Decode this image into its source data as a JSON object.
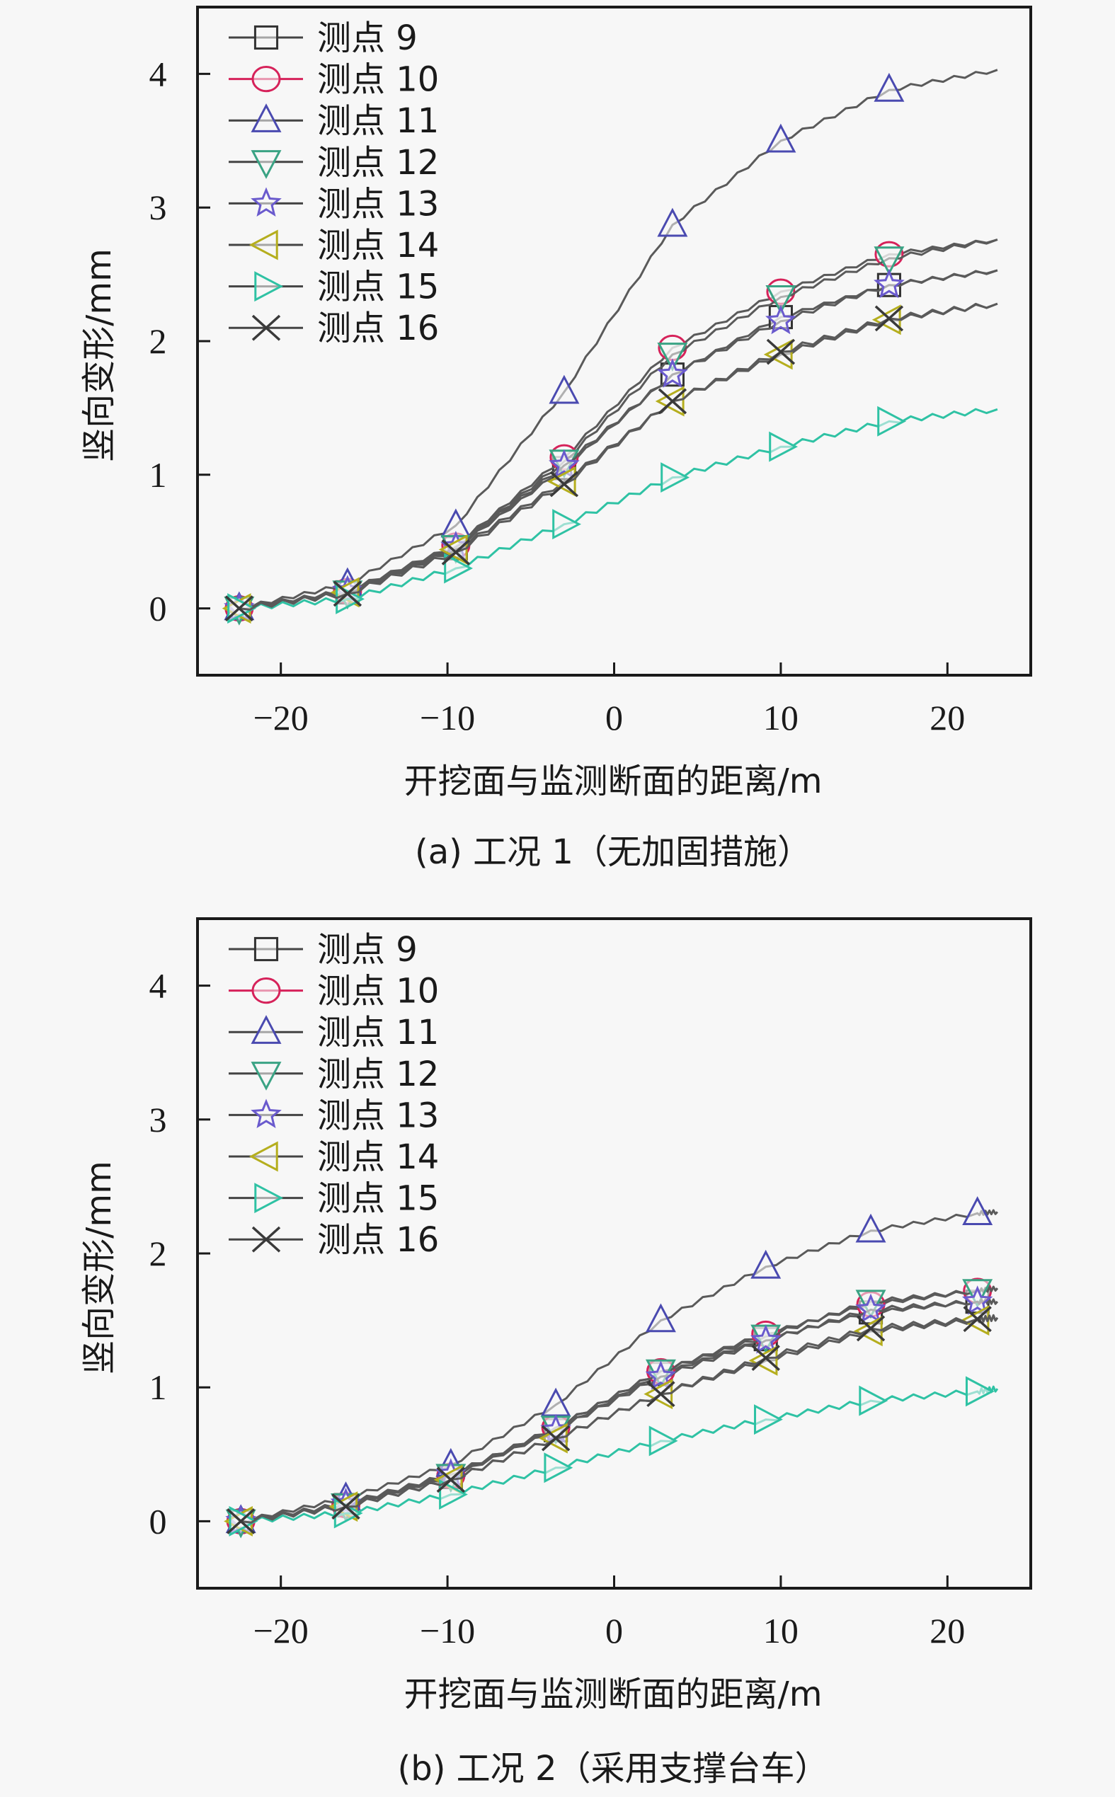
{
  "chart_data": [
    {
      "type": "line",
      "panel": "a",
      "caption": "(a) 工况 1（无加固措施）",
      "xlabel": "开挖面与监测断面的距离/m",
      "ylabel": "竖向变形/mm",
      "xlim": [
        -25,
        25
      ],
      "ylim": [
        -0.5,
        4.5
      ],
      "xticks": [
        -20,
        -10,
        0,
        10,
        20
      ],
      "xtick_labels": [
        "−20",
        "−10",
        "0",
        "10",
        "20"
      ],
      "yticks": [
        0,
        1,
        2,
        3,
        4
      ],
      "ytick_labels": [
        "0",
        "1",
        "2",
        "3",
        "4"
      ],
      "grid": false,
      "legend_position": "top-left",
      "x": [
        -22.5,
        -16,
        -9.5,
        -3,
        3.5,
        10,
        16.5,
        23
      ],
      "series": [
        {
          "name": "测点 9",
          "marker": "square",
          "color": "#333333",
          "values": [
            0,
            0.12,
            0.45,
            1.05,
            1.75,
            2.18,
            2.42,
            2.53
          ]
        },
        {
          "name": "测点 10",
          "marker": "circle",
          "color": "#d6225a",
          "values": [
            0,
            0.13,
            0.47,
            1.13,
            1.95,
            2.37,
            2.65,
            2.76
          ]
        },
        {
          "name": "测点 11",
          "marker": "triangle-up",
          "color": "#4a4ab0",
          "values": [
            0,
            0.18,
            0.62,
            1.62,
            2.87,
            3.5,
            3.88,
            4.03
          ]
        },
        {
          "name": "测点 12",
          "marker": "triangle-down",
          "color": "#3aa384",
          "values": [
            0,
            0.12,
            0.46,
            1.1,
            1.9,
            2.33,
            2.62,
            2.76
          ]
        },
        {
          "name": "测点 13",
          "marker": "star",
          "color": "#6a5acd",
          "values": [
            0,
            0.13,
            0.46,
            1.07,
            1.75,
            2.15,
            2.42,
            2.53
          ]
        },
        {
          "name": "测点 14",
          "marker": "triangle-left",
          "color": "#b5ae1e",
          "values": [
            0,
            0.12,
            0.44,
            0.95,
            1.55,
            1.9,
            2.16,
            2.28
          ]
        },
        {
          "name": "测点 15",
          "marker": "triangle-right",
          "color": "#2fc2a4",
          "values": [
            0,
            0.07,
            0.3,
            0.63,
            0.98,
            1.21,
            1.4,
            1.49
          ]
        },
        {
          "name": "测点 16",
          "marker": "x",
          "color": "#3a3a3a",
          "values": [
            0,
            0.11,
            0.42,
            0.93,
            1.55,
            1.92,
            2.17,
            2.28
          ]
        }
      ]
    },
    {
      "type": "line",
      "panel": "b",
      "caption": "(b) 工况 2（采用支撑台车）",
      "xlabel": "开挖面与监测断面的距离/m",
      "ylabel": "竖向变形/mm",
      "xlim": [
        -25,
        25
      ],
      "ylim": [
        -0.5,
        4.5
      ],
      "xticks": [
        -20,
        -10,
        0,
        10,
        20
      ],
      "xtick_labels": [
        "−20",
        "−10",
        "0",
        "10",
        "20"
      ],
      "yticks": [
        0,
        1,
        2,
        3,
        4
      ],
      "ytick_labels": [
        "0",
        "1",
        "2",
        "3",
        "4"
      ],
      "grid": false,
      "legend_position": "top-left",
      "x": [
        -22.4,
        -16.1,
        -9.8,
        -3.5,
        2.8,
        9.1,
        15.4,
        21.8,
        23
      ],
      "series": [
        {
          "name": "测点 9",
          "marker": "square",
          "color": "#333333",
          "values": [
            0,
            0.12,
            0.33,
            0.68,
            1.1,
            1.36,
            1.56,
            1.64,
            1.64
          ]
        },
        {
          "name": "测点 10",
          "marker": "circle",
          "color": "#d6225a",
          "values": [
            0,
            0.12,
            0.34,
            0.7,
            1.12,
            1.4,
            1.62,
            1.72,
            1.74
          ]
        },
        {
          "name": "测点 11",
          "marker": "triangle-up",
          "color": "#4a4ab0",
          "values": [
            0,
            0.17,
            0.42,
            0.87,
            1.5,
            1.9,
            2.17,
            2.3,
            2.31
          ]
        },
        {
          "name": "测点 12",
          "marker": "triangle-down",
          "color": "#3aa384",
          "values": [
            0,
            0.12,
            0.34,
            0.7,
            1.12,
            1.38,
            1.64,
            1.72,
            1.74
          ]
        },
        {
          "name": "测点 13",
          "marker": "star",
          "color": "#6a5acd",
          "values": [
            0,
            0.13,
            0.35,
            0.68,
            1.08,
            1.35,
            1.58,
            1.64,
            1.64
          ]
        },
        {
          "name": "测点 14",
          "marker": "triangle-left",
          "color": "#b5ae1e",
          "values": [
            0,
            0.11,
            0.31,
            0.62,
            0.95,
            1.2,
            1.42,
            1.5,
            1.52
          ]
        },
        {
          "name": "测点 15",
          "marker": "triangle-right",
          "color": "#2fc2a4",
          "values": [
            0,
            0.06,
            0.2,
            0.4,
            0.6,
            0.76,
            0.9,
            0.97,
            0.99
          ]
        },
        {
          "name": "测点 16",
          "marker": "x",
          "color": "#3a3a3a",
          "values": [
            0,
            0.11,
            0.31,
            0.62,
            0.95,
            1.22,
            1.44,
            1.51,
            1.52
          ]
        }
      ]
    }
  ]
}
